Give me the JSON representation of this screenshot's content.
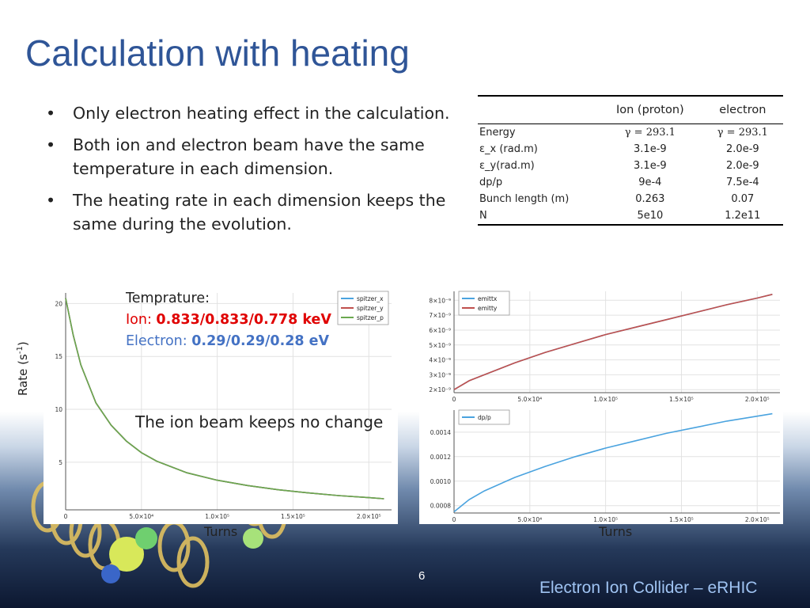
{
  "slide": {
    "title": "Calculation with heating",
    "bullets": [
      "Only electron heating effect in the calculation.",
      "Both ion and electron beam have the same temperature in each dimension.",
      "The heating rate in each dimension keeps the same during the evolution."
    ],
    "bullet_glyph": "•",
    "page_number": "6",
    "footer_brand": "Electron Ion Collider – eRHIC",
    "title_color": "#2f5597"
  },
  "table": {
    "headers": [
      "",
      "Ion (proton)",
      "electron"
    ],
    "rows": [
      [
        "Energy",
        "γ = 293.1",
        "γ = 293.1"
      ],
      [
        "ε_x (rad.m)",
        "3.1e-9",
        "2.0e-9"
      ],
      [
        "ε_y(rad.m)",
        "3.1e-9",
        "2.0e-9"
      ],
      [
        "dp/p",
        "9e-4",
        "7.5e-4"
      ],
      [
        "Bunch length (m)",
        "0.263",
        "0.07"
      ],
      [
        "N",
        "5e10",
        "1.2e11"
      ]
    ]
  },
  "annotations": {
    "temp_label": "Temprature:",
    "ion_label": "Ion: ",
    "ion_value": "0.833/0.833/0.778 keV",
    "electron_label": "Electron: ",
    "electron_value": "0.29/0.29/0.28 eV",
    "ion_note": "The ion beam keeps no change",
    "rate_label": "Rate (s",
    "rate_sup": "-1",
    "rate_close": ")",
    "turns_left": "Turns",
    "turns_right": "Turns",
    "ion_color": "#e00000",
    "electron_color": "#4472c4"
  },
  "chart_data": [
    {
      "type": "line",
      "ylabel": "Rate (s-1)",
      "xlabel": "Turns",
      "xlim": [
        0,
        215000
      ],
      "ylim": [
        0.5,
        21
      ],
      "x_ticks": [
        0,
        50000,
        100000,
        150000,
        200000
      ],
      "x_tick_labels": [
        "0",
        "5.0×10⁴",
        "1.0×10⁵",
        "1.5×10⁵",
        "2.0×10⁵"
      ],
      "y_ticks": [
        5,
        10,
        15,
        20
      ],
      "y_tick_labels": [
        "5",
        "10",
        "15",
        "20"
      ],
      "grid": true,
      "legend": "top-right",
      "x": [
        0,
        5000,
        10000,
        20000,
        30000,
        40000,
        50000,
        60000,
        80000,
        100000,
        120000,
        140000,
        160000,
        180000,
        200000,
        210000
      ],
      "series": [
        {
          "name": "spitzer_x",
          "color": "#4aa3df",
          "values": [
            20.5,
            17.0,
            14.2,
            10.6,
            8.5,
            7.0,
            5.9,
            5.1,
            4.0,
            3.3,
            2.8,
            2.4,
            2.1,
            1.85,
            1.65,
            1.55
          ]
        },
        {
          "name": "spitzer_y",
          "color": "#c0504d",
          "values": [
            20.5,
            17.0,
            14.2,
            10.6,
            8.5,
            7.0,
            5.9,
            5.1,
            4.0,
            3.3,
            2.8,
            2.4,
            2.1,
            1.85,
            1.65,
            1.55
          ]
        },
        {
          "name": "spitzer_p",
          "color": "#6aa84f",
          "values": [
            20.5,
            17.0,
            14.2,
            10.6,
            8.5,
            7.0,
            5.9,
            5.1,
            4.0,
            3.3,
            2.8,
            2.4,
            2.1,
            1.85,
            1.65,
            1.55
          ]
        }
      ]
    },
    {
      "type": "line",
      "xlim": [
        0,
        215000
      ],
      "ylim": [
        1.8e-09,
        8.6e-09
      ],
      "x_ticks": [
        0,
        50000,
        100000,
        150000,
        200000
      ],
      "x_tick_labels": [
        "0",
        "5.0×10⁴",
        "1.0×10⁵",
        "1.5×10⁵",
        "2.0×10⁵"
      ],
      "y_ticks": [
        2e-09,
        3e-09,
        4e-09,
        5e-09,
        6e-09,
        7e-09,
        8e-09
      ],
      "y_tick_labels": [
        "2×10⁻⁹",
        "3×10⁻⁹",
        "4×10⁻⁹",
        "5×10⁻⁹",
        "6×10⁻⁹",
        "7×10⁻⁹",
        "8×10⁻⁹"
      ],
      "grid": true,
      "legend": "top-left",
      "x": [
        0,
        10000,
        20000,
        40000,
        60000,
        80000,
        100000,
        120000,
        140000,
        160000,
        180000,
        200000,
        210000
      ],
      "series": [
        {
          "name": "emittx",
          "color": "#4aa3df",
          "values": [
            2e-09,
            2.6e-09,
            3e-09,
            3.8e-09,
            4.5e-09,
            5.1e-09,
            5.7e-09,
            6.2e-09,
            6.7e-09,
            7.2e-09,
            7.7e-09,
            8.15e-09,
            8.4e-09
          ]
        },
        {
          "name": "emitty",
          "color": "#c0504d",
          "values": [
            2e-09,
            2.6e-09,
            3e-09,
            3.8e-09,
            4.5e-09,
            5.1e-09,
            5.7e-09,
            6.2e-09,
            6.7e-09,
            7.2e-09,
            7.7e-09,
            8.15e-09,
            8.4e-09
          ]
        }
      ]
    },
    {
      "type": "line",
      "xlabel": "Turns",
      "xlim": [
        0,
        215000
      ],
      "ylim": [
        0.00074,
        0.00158
      ],
      "x_ticks": [
        0,
        50000,
        100000,
        150000,
        200000
      ],
      "x_tick_labels": [
        "0",
        "5.0×10⁴",
        "1.0×10⁵",
        "1.5×10⁵",
        "2.0×10⁵"
      ],
      "y_ticks": [
        0.0008,
        0.001,
        0.0012,
        0.0014
      ],
      "y_tick_labels": [
        "0.0008",
        "0.0010",
        "0.0012",
        "0.0014"
      ],
      "grid": true,
      "legend": "top-left",
      "x": [
        0,
        5000,
        10000,
        20000,
        40000,
        60000,
        80000,
        100000,
        120000,
        140000,
        160000,
        180000,
        200000,
        210000
      ],
      "series": [
        {
          "name": "dp/p",
          "color": "#4aa3df",
          "values": [
            0.00075,
            0.0008,
            0.00085,
            0.00092,
            0.00103,
            0.00112,
            0.0012,
            0.00127,
            0.00133,
            0.00139,
            0.00144,
            0.00149,
            0.00153,
            0.00155
          ]
        }
      ]
    }
  ]
}
